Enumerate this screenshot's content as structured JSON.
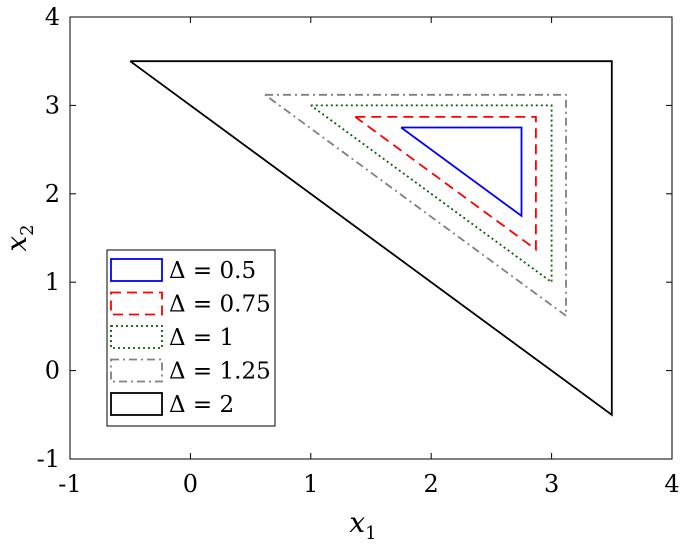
{
  "chart_data": {
    "type": "line",
    "title": "",
    "xlabel": {
      "var": "x",
      "sub": "1"
    },
    "ylabel": {
      "var": "x",
      "sub": "2"
    },
    "xlim": [
      -1,
      4
    ],
    "ylim": [
      -1,
      4
    ],
    "xticks": [
      "-1",
      "0",
      "1",
      "2",
      "3",
      "4"
    ],
    "yticks": [
      "-1",
      "0",
      "1",
      "2",
      "3",
      "4"
    ],
    "grid": false,
    "legend_position": "bottom-left",
    "series": [
      {
        "name": "Δ = 0.5",
        "color": "#0000ff",
        "dash": "solid",
        "x": [
          1.75,
          2.75,
          2.75,
          1.75
        ],
        "y": [
          2.75,
          2.75,
          1.75,
          2.75
        ]
      },
      {
        "name": "Δ = 0.75",
        "color": "#ff0000",
        "dash": "dashed",
        "x": [
          1.37,
          2.87,
          2.87,
          1.37
        ],
        "y": [
          2.87,
          2.87,
          1.37,
          2.87
        ]
      },
      {
        "name": "Δ = 1",
        "color": "#006400",
        "dash": "dotted",
        "x": [
          1.0,
          3.0,
          3.0,
          1.0
        ],
        "y": [
          3.0,
          3.0,
          1.0,
          3.0
        ]
      },
      {
        "name": "Δ = 1.25",
        "color": "#808080",
        "dash": "dashdot",
        "x": [
          0.62,
          3.12,
          3.12,
          0.62
        ],
        "y": [
          3.12,
          3.12,
          0.62,
          3.12
        ]
      },
      {
        "name": "Δ = 2",
        "color": "#000000",
        "dash": "solid",
        "x": [
          -0.5,
          3.5,
          3.5,
          -0.5
        ],
        "y": [
          3.5,
          3.5,
          -0.5,
          3.5
        ]
      }
    ]
  }
}
